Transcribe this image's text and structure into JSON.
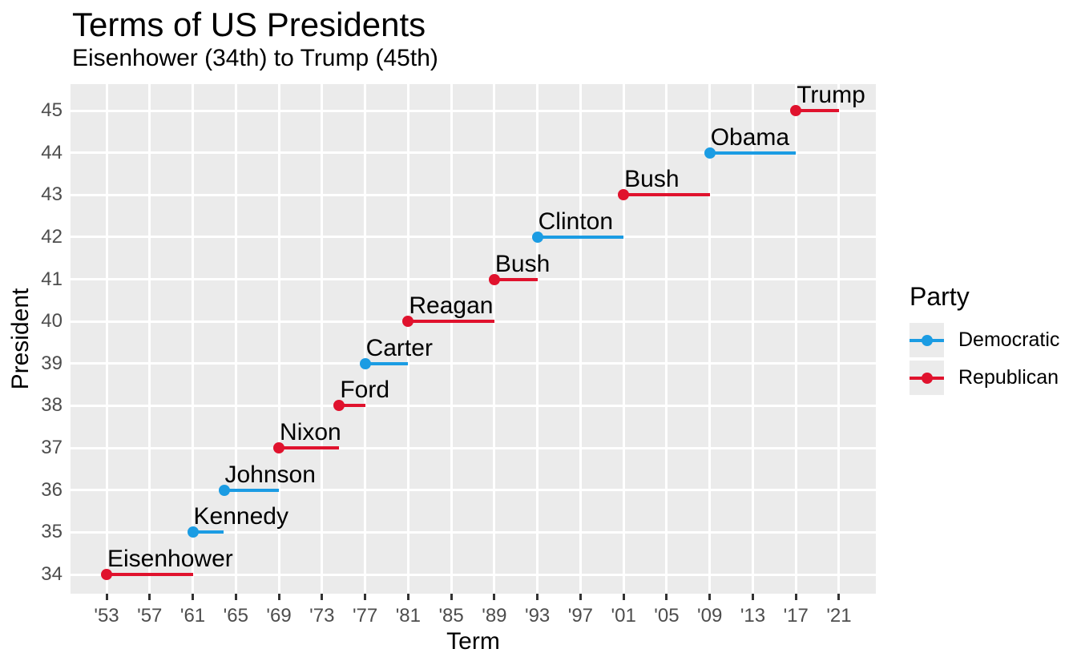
{
  "header": {
    "title": "Terms of US Presidents",
    "subtitle": "Eisenhower (34th) to Trump (45th)"
  },
  "chart_data": {
    "type": "scatter",
    "subtype": "segment-dumbbell-timeline",
    "title": "Terms of US Presidents",
    "subtitle": "Eisenhower (34th) to Trump (45th)",
    "xlabel": "Term",
    "ylabel": "President",
    "grid": "major-only",
    "legend_position": "right",
    "xlim": [
      1949.7,
      2024.4
    ],
    "ylim": [
      33.5,
      45.6
    ],
    "x_ticks": [
      {
        "label": "'53",
        "year": 1953
      },
      {
        "label": "'57",
        "year": 1957
      },
      {
        "label": "'61",
        "year": 1961
      },
      {
        "label": "'65",
        "year": 1965
      },
      {
        "label": "'69",
        "year": 1969
      },
      {
        "label": "'73",
        "year": 1973
      },
      {
        "label": "'77",
        "year": 1977
      },
      {
        "label": "'81",
        "year": 1981
      },
      {
        "label": "'85",
        "year": 1985
      },
      {
        "label": "'89",
        "year": 1989
      },
      {
        "label": "'93",
        "year": 1993
      },
      {
        "label": "'97",
        "year": 1997
      },
      {
        "label": "'01",
        "year": 2001
      },
      {
        "label": "'05",
        "year": 2005
      },
      {
        "label": "'09",
        "year": 2009
      },
      {
        "label": "'13",
        "year": 2013
      },
      {
        "label": "'17",
        "year": 2017
      },
      {
        "label": "'21",
        "year": 2021
      }
    ],
    "y_ticks": [
      34,
      35,
      36,
      37,
      38,
      39,
      40,
      41,
      42,
      43,
      44,
      45
    ],
    "presidents": [
      {
        "number": 34,
        "name": "Eisenhower",
        "party": "Republican",
        "start": 1953,
        "end": 1961
      },
      {
        "number": 35,
        "name": "Kennedy",
        "party": "Democratic",
        "start": 1961,
        "end": 1963.9
      },
      {
        "number": 36,
        "name": "Johnson",
        "party": "Democratic",
        "start": 1963.9,
        "end": 1969
      },
      {
        "number": 37,
        "name": "Nixon",
        "party": "Republican",
        "start": 1969,
        "end": 1974.6
      },
      {
        "number": 38,
        "name": "Ford",
        "party": "Republican",
        "start": 1974.6,
        "end": 1977
      },
      {
        "number": 39,
        "name": "Carter",
        "party": "Democratic",
        "start": 1977,
        "end": 1981
      },
      {
        "number": 40,
        "name": "Reagan",
        "party": "Republican",
        "start": 1981,
        "end": 1989
      },
      {
        "number": 41,
        "name": "Bush",
        "party": "Republican",
        "start": 1989,
        "end": 1993
      },
      {
        "number": 42,
        "name": "Clinton",
        "party": "Democratic",
        "start": 1993,
        "end": 2001
      },
      {
        "number": 43,
        "name": "Bush",
        "party": "Republican",
        "start": 2001,
        "end": 2009
      },
      {
        "number": 44,
        "name": "Obama",
        "party": "Democratic",
        "start": 2009,
        "end": 2017
      },
      {
        "number": 45,
        "name": "Trump",
        "party": "Republican",
        "start": 2017,
        "end": 2021
      }
    ],
    "legend": {
      "title": "Party",
      "entries": [
        {
          "label": "Democratic",
          "color": "#1B9CE3"
        },
        {
          "label": "Republican",
          "color": "#E0122D"
        }
      ]
    }
  },
  "colors": {
    "democratic": "#1B9CE3",
    "republican": "#E0122D",
    "panel_bg": "#EBEBEB",
    "gridline": "#FFFFFF",
    "axis_tick": "#333333",
    "tick_label": "#4D4D4D",
    "text": "#000000",
    "legend_key_bg": "#EBEBEB"
  }
}
